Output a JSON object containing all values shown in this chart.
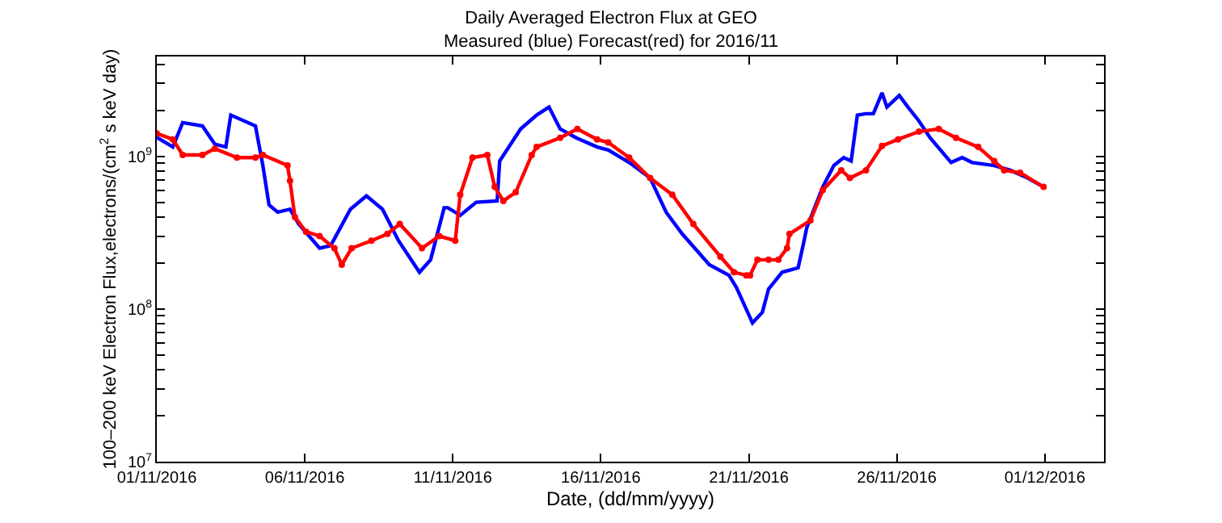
{
  "chart_data": {
    "type": "line",
    "title": "Daily Averaged Electron Flux at GEO\nMeasured (blue) Forecast(red) for 2016/11",
    "xlabel": "Date, (dd/mm/yyyy)",
    "ylabel": "100–200 keV Electron Flux,electrons/(cm$^{2}$ s keV day)",
    "log": true,
    "xlim": [
      "2016-11-01",
      "2016-12-03"
    ],
    "xticks": [
      {
        "value": "2016-11-01",
        "label": "01/11/2016"
      },
      {
        "value": "2016-11-06",
        "label": "06/11/2016"
      },
      {
        "value": "2016-11-11",
        "label": "11/11/2016"
      },
      {
        "value": "2016-11-16",
        "label": "16/11/2016"
      },
      {
        "value": "2016-11-21",
        "label": "21/11/2016"
      },
      {
        "value": "2016-11-26",
        "label": "26/11/2016"
      },
      {
        "value": "2016-12-01",
        "label": "01/12/2016"
      }
    ],
    "ylim": [
      10000000,
      4500000000
    ],
    "yticks": [
      {
        "value": 10000000,
        "label": "10$^{7}$"
      },
      {
        "value": 20000000,
        "label": null
      },
      {
        "value": 30000000,
        "label": null
      },
      {
        "value": 40000000,
        "label": null
      },
      {
        "value": 50000000,
        "label": null
      },
      {
        "value": 60000000,
        "label": null
      },
      {
        "value": 70000000,
        "label": null
      },
      {
        "value": 80000000,
        "label": null
      },
      {
        "value": 90000000,
        "label": null
      },
      {
        "value": 100000000,
        "label": "10$^{8}$"
      },
      {
        "value": 200000000,
        "label": null
      },
      {
        "value": 300000000,
        "label": null
      },
      {
        "value": 400000000,
        "label": null
      },
      {
        "value": 500000000,
        "label": null
      },
      {
        "value": 600000000,
        "label": null
      },
      {
        "value": 700000000,
        "label": null
      },
      {
        "value": 800000000,
        "label": null
      },
      {
        "value": 900000000,
        "label": null
      },
      {
        "value": 1000000000,
        "label": "10$^{9}$"
      },
      {
        "value": 2000000000,
        "label": null
      },
      {
        "value": 3000000000,
        "label": null
      },
      {
        "value": 4000000000,
        "label": null
      }
    ],
    "series": [
      {
        "color": "#0000ff",
        "marker": "none",
        "x": [
          "2016-11-01T00:00",
          "2016-11-01T13:00",
          "2016-11-01T21:00",
          "2016-11-02T13:00",
          "2016-11-02T23:00",
          "2016-11-03T08:00",
          "2016-11-03T12:00",
          "2016-11-04T08:00",
          "2016-11-04T14:00",
          "2016-11-04T19:00",
          "2016-11-05T02:00",
          "2016-11-05T12:00",
          "2016-11-05T19:00",
          "2016-11-06T12:00",
          "2016-11-06T21:00",
          "2016-11-07T13:00",
          "2016-11-08T02:00",
          "2016-11-08T15:00",
          "2016-11-09T04:00",
          "2016-11-09T21:00",
          "2016-11-10T06:00",
          "2016-11-10T17:00",
          "2016-11-10T20:00",
          "2016-11-11T06:00",
          "2016-11-11T19:00",
          "2016-11-12T12:00",
          "2016-11-12T14:00",
          "2016-11-13T07:00",
          "2016-11-13T20:00",
          "2016-11-14T06:00",
          "2016-11-14T15:00",
          "2016-11-15T04:00",
          "2016-11-15T21:00",
          "2016-11-16T06:00",
          "2016-11-16T23:00",
          "2016-11-17T16:00",
          "2016-11-18T05:00",
          "2016-11-18T18:00",
          "2016-11-19T16:00",
          "2016-11-20T08:00",
          "2016-11-20T14:00",
          "2016-11-21T03:00",
          "2016-11-21T11:00",
          "2016-11-21T16:00",
          "2016-11-22T03:00",
          "2016-11-22T16:00",
          "2016-11-22T20:00",
          "2016-11-22T23:00",
          "2016-11-23T12:00",
          "2016-11-23T21:00",
          "2016-11-24T05:00",
          "2016-11-24T11:00",
          "2016-11-24T16:00",
          "2016-11-24T23:00",
          "2016-11-25T05:00",
          "2016-11-25T12:00",
          "2016-11-25T16:00",
          "2016-11-26T02:00",
          "2016-11-26T09:00",
          "2016-11-26T18:00",
          "2016-11-27T03:00",
          "2016-11-27T20:00",
          "2016-11-28T05:00",
          "2016-11-28T13:00",
          "2016-11-29T07:00",
          "2016-11-29T20:00",
          "2016-11-30T10:00",
          "2016-11-30T23:00"
        ],
        "values": [
          1330000000,
          1150000000,
          1660000000,
          1580000000,
          1200000000,
          1150000000,
          1860000000,
          1580000000,
          870000000,
          480000000,
          430000000,
          450000000,
          360000000,
          250000000,
          260000000,
          450000000,
          550000000,
          450000000,
          280000000,
          174000000,
          210000000,
          460000000,
          460000000,
          410000000,
          500000000,
          510000000,
          930000000,
          1510000000,
          1860000000,
          2100000000,
          1510000000,
          1320000000,
          1150000000,
          1100000000,
          910000000,
          720000000,
          430000000,
          310000000,
          195000000,
          166000000,
          138000000,
          81000000,
          95000000,
          135000000,
          174000000,
          186000000,
          260000000,
          340000000,
          630000000,
          870000000,
          980000000,
          930000000,
          1860000000,
          1900000000,
          1900000000,
          2600000000,
          2100000000,
          2500000000,
          2100000000,
          1700000000,
          1320000000,
          910000000,
          980000000,
          910000000,
          870000000,
          810000000,
          720000000,
          630000000
        ]
      },
      {
        "color": "#ff0000",
        "marker": "circle",
        "x": [
          "2016-11-01T00:00",
          "2016-11-01T13:00",
          "2016-11-01T21:00",
          "2016-11-02T13:00",
          "2016-11-02T23:00",
          "2016-11-03T17:00",
          "2016-11-04T08:00",
          "2016-11-04T14:00",
          "2016-11-05T10:00",
          "2016-11-05T12:00",
          "2016-11-05T16:00",
          "2016-11-06T01:00",
          "2016-11-06T12:00",
          "2016-11-07T00:00",
          "2016-11-07T06:00",
          "2016-11-07T14:00",
          "2016-11-08T06:00",
          "2016-11-08T19:00",
          "2016-11-09T05:00",
          "2016-11-09T23:00",
          "2016-11-10T13:00",
          "2016-11-11T02:00",
          "2016-11-11T06:00",
          "2016-11-11T16:00",
          "2016-11-12T04:00",
          "2016-11-12T10:00",
          "2016-11-12T17:00",
          "2016-11-13T03:00",
          "2016-11-13T16:00",
          "2016-11-13T20:00",
          "2016-11-14T15:00",
          "2016-11-15T05:00",
          "2016-11-15T21:00",
          "2016-11-16T06:00",
          "2016-11-16T23:00",
          "2016-11-17T16:00",
          "2016-11-18T10:00",
          "2016-11-19T03:00",
          "2016-11-20T01:00",
          "2016-11-20T12:00",
          "2016-11-20T22:00",
          "2016-11-21T01:00",
          "2016-11-21T07:00",
          "2016-11-21T16:00",
          "2016-11-22T00:00",
          "2016-11-22T07:00",
          "2016-11-22T09:00",
          "2016-11-23T02:00",
          "2016-11-23T12:00",
          "2016-11-24T03:00",
          "2016-11-24T10:00",
          "2016-11-24T23:00",
          "2016-11-25T12:00",
          "2016-11-26T01:00",
          "2016-11-26T18:00",
          "2016-11-27T10:00",
          "2016-11-28T00:00",
          "2016-11-28T18:00",
          "2016-11-29T07:00",
          "2016-11-29T15:00",
          "2016-11-30T04:00",
          "2016-11-30T23:00"
        ],
        "values": [
          1410000000,
          1290000000,
          1020000000,
          1020000000,
          1120000000,
          980000000,
          980000000,
          1020000000,
          870000000,
          690000000,
          400000000,
          320000000,
          300000000,
          250000000,
          195000000,
          250000000,
          280000000,
          310000000,
          360000000,
          250000000,
          300000000,
          280000000,
          560000000,
          980000000,
          1020000000,
          630000000,
          510000000,
          580000000,
          1020000000,
          1150000000,
          1320000000,
          1510000000,
          1290000000,
          1230000000,
          980000000,
          720000000,
          560000000,
          360000000,
          220000000,
          174000000,
          166000000,
          166000000,
          210000000,
          210000000,
          210000000,
          250000000,
          310000000,
          380000000,
          600000000,
          810000000,
          720000000,
          810000000,
          1170000000,
          1290000000,
          1450000000,
          1510000000,
          1320000000,
          1150000000,
          930000000,
          810000000,
          780000000,
          630000000
        ]
      }
    ]
  }
}
